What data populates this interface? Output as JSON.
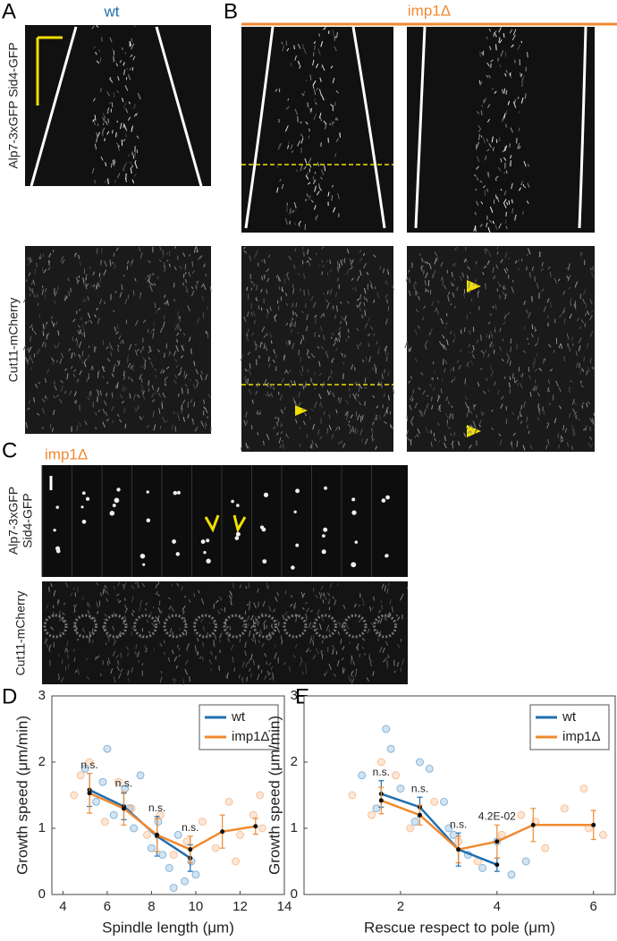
{
  "panels": {
    "A": {
      "label": "A",
      "title": "wt",
      "row_labels": [
        "Alp7-3xGFP Sid4-GFP",
        "Cut11-mCherry"
      ]
    },
    "B": {
      "label": "B",
      "title": "imp1Δ"
    },
    "C": {
      "label": "C",
      "title": "imp1Δ",
      "row_labels": [
        "Alp7-3xGFP",
        "Sid4-GFP",
        "Cut11-mCherry"
      ]
    },
    "D": {
      "label": "D"
    },
    "E": {
      "label": "E"
    }
  },
  "chart_data": [
    {
      "type": "line",
      "xlabel": "Spindle length (μm)",
      "ylabel": "Growth speed (μm/min)",
      "xlim": [
        3.5,
        14
      ],
      "ylim": [
        0,
        3
      ],
      "xticks": [
        4,
        6,
        8,
        10,
        12,
        14
      ],
      "yticks": [
        0,
        1,
        2,
        3
      ],
      "legend": "upper right",
      "series": [
        {
          "name": "wt",
          "color": "#1f6fb0",
          "x": [
            5.2,
            6.75,
            8.25,
            9.75
          ],
          "values": [
            1.58,
            1.33,
            0.88,
            0.55
          ],
          "errors": [
            0.25,
            0.2,
            0.3,
            0.2
          ]
        },
        {
          "name": "imp1Δ",
          "color": "#f08a30",
          "x": [
            5.2,
            6.75,
            8.25,
            9.75,
            11.2,
            12.7
          ],
          "values": [
            1.53,
            1.3,
            0.9,
            0.68,
            0.95,
            1.03
          ],
          "errors": [
            0.3,
            0.25,
            0.25,
            0.2,
            0.25,
            0.12
          ]
        }
      ],
      "annotations": [
        "n.s.",
        "n.s.",
        "n.s.",
        "n.s."
      ],
      "scatter": [
        {
          "color": "#4a90c8",
          "x": [
            5.0,
            5.5,
            6.0,
            6.3,
            6.8,
            7.2,
            7.5,
            8.0,
            8.3,
            8.8,
            9.2,
            9.5,
            9.8,
            10.0,
            5.8,
            7.0,
            8.5,
            9.0
          ],
          "values": [
            1.9,
            1.4,
            2.2,
            1.2,
            1.6,
            1.0,
            1.8,
            0.7,
            1.1,
            0.4,
            0.9,
            0.2,
            0.5,
            0.3,
            1.7,
            1.3,
            0.6,
            0.1
          ]
        },
        {
          "color": "#f5a060",
          "x": [
            4.5,
            5.2,
            5.9,
            6.5,
            7.1,
            7.8,
            8.4,
            9.0,
            9.6,
            10.3,
            10.9,
            11.5,
            12.0,
            12.6,
            13.0,
            4.8,
            11.8,
            12.9
          ],
          "values": [
            1.5,
            2.0,
            1.1,
            1.7,
            1.3,
            0.9,
            1.2,
            0.6,
            0.8,
            1.1,
            0.7,
            1.4,
            0.9,
            1.2,
            1.0,
            1.8,
            0.5,
            1.5
          ]
        }
      ]
    },
    {
      "type": "line",
      "xlabel": "Rescue respect to pole (μm)",
      "ylabel": "Growth speed (μm/min)",
      "xlim": [
        0,
        6.45
      ],
      "ylim": [
        0,
        3
      ],
      "xticks": [
        2,
        4,
        6
      ],
      "yticks": [
        0,
        1,
        2,
        3
      ],
      "legend": "upper right",
      "series": [
        {
          "name": "wt",
          "color": "#1f6fb0",
          "x": [
            1.6,
            2.4,
            3.2,
            4.0
          ],
          "values": [
            1.52,
            1.32,
            0.68,
            0.45
          ],
          "errors": [
            0.2,
            0.15,
            0.25,
            0.1
          ]
        },
        {
          "name": "imp1Δ",
          "color": "#f08a30",
          "x": [
            1.6,
            2.4,
            3.2,
            4.0,
            4.75,
            6.0
          ],
          "values": [
            1.42,
            1.2,
            0.68,
            0.8,
            1.05,
            1.05
          ],
          "errors": [
            0.2,
            0.15,
            0.2,
            0.25,
            0.25,
            0.22
          ]
        }
      ],
      "annotations": [
        "n.s.",
        "n.s.",
        "n.s.",
        "4.2E-02"
      ],
      "scatter": [
        {
          "color": "#4a90c8",
          "x": [
            1.2,
            1.5,
            1.8,
            2.0,
            2.3,
            2.6,
            2.9,
            3.1,
            3.4,
            3.7,
            4.0,
            4.3,
            4.6,
            1.7,
            2.4,
            3.0
          ],
          "values": [
            1.8,
            1.3,
            2.2,
            1.6,
            1.1,
            1.9,
            1.4,
            0.9,
            0.6,
            0.4,
            0.8,
            0.3,
            0.5,
            2.5,
            2.0,
            1.0
          ]
        },
        {
          "color": "#f5a060",
          "x": [
            1.0,
            1.4,
            1.9,
            2.2,
            2.7,
            3.2,
            3.6,
            4.1,
            4.5,
            5.0,
            5.4,
            5.9,
            5.8,
            6.2,
            1.6,
            4.8
          ],
          "values": [
            1.5,
            1.2,
            1.8,
            1.0,
            1.4,
            0.8,
            0.5,
            0.9,
            1.2,
            0.7,
            1.3,
            1.0,
            1.6,
            0.9,
            2.0,
            1.1
          ]
        }
      ]
    }
  ]
}
